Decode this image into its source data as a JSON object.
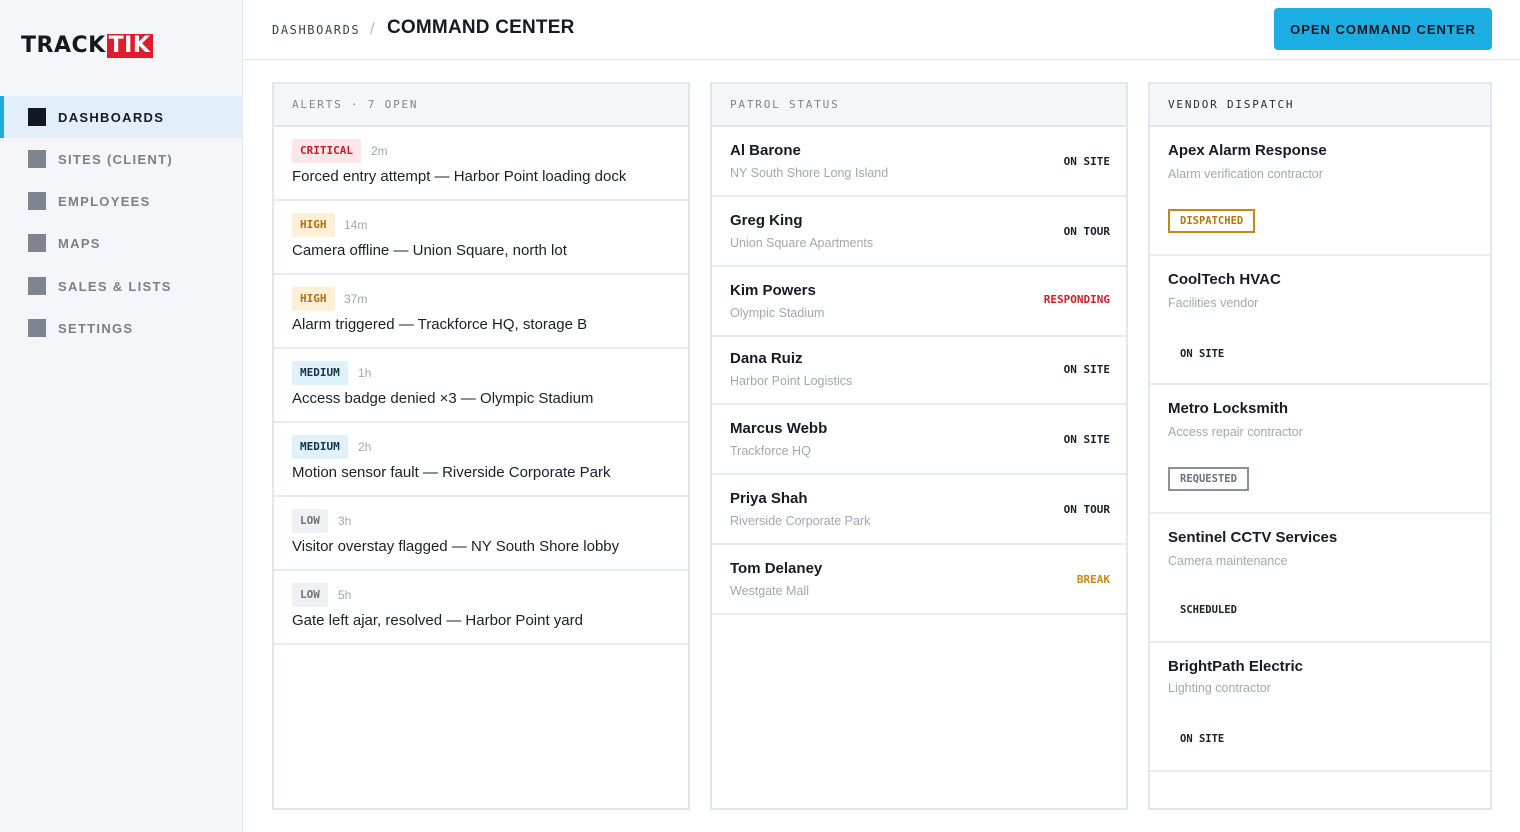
{
  "brand": {
    "logo_part1": "TRACK",
    "logo_part2": "TIK"
  },
  "sidebar": {
    "items": [
      {
        "label": "DASHBOARDS",
        "active": true
      },
      {
        "label": "SITES (CLIENT)",
        "active": false
      },
      {
        "label": "EMPLOYEES",
        "active": false
      },
      {
        "label": "MAPS",
        "active": false
      },
      {
        "label": "SALES & LISTS",
        "active": false
      },
      {
        "label": "SETTINGS",
        "active": false
      }
    ]
  },
  "header": {
    "breadcrumb": "DASHBOARDS",
    "breadcrumb_separator": "/",
    "title": "COMMAND CENTER",
    "action_label": "OPEN COMMAND CENTER"
  },
  "alerts": {
    "heading": "ALERTS · 7 OPEN",
    "items": [
      {
        "severity": "CRITICAL",
        "level": "critical",
        "age": "2m",
        "text": "Forced entry attempt — Harbor Point loading dock"
      },
      {
        "severity": "HIGH",
        "level": "high",
        "age": "14m",
        "text": "Camera offline — Union Square, north lot"
      },
      {
        "severity": "HIGH",
        "level": "high",
        "age": "37m",
        "text": "Alarm triggered — Trackforce HQ, storage B"
      },
      {
        "severity": "MEDIUM",
        "level": "medium",
        "age": "1h",
        "text": "Access badge denied ×3 — Olympic Stadium"
      },
      {
        "severity": "MEDIUM",
        "level": "medium",
        "age": "2h",
        "text": "Motion sensor fault — Riverside Corporate Park"
      },
      {
        "severity": "LOW",
        "level": "low",
        "age": "3h",
        "text": "Visitor overstay flagged — NY South Shore lobby"
      },
      {
        "severity": "LOW",
        "level": "low",
        "age": "5h",
        "text": "Gate left ajar, resolved — Harbor Point yard"
      }
    ]
  },
  "patrol": {
    "heading": "PATROL STATUS",
    "items": [
      {
        "name": "Al Barone",
        "site": "NY South Shore Long Island",
        "status": "ON SITE",
        "kind": "normal"
      },
      {
        "name": "Greg King",
        "site": "Union Square Apartments",
        "status": "ON TOUR",
        "kind": "normal"
      },
      {
        "name": "Kim Powers",
        "site": "Olympic Stadium",
        "status": "RESPONDING",
        "kind": "responding"
      },
      {
        "name": "Dana Ruiz",
        "site": "Harbor Point Logistics",
        "status": "ON SITE",
        "kind": "normal"
      },
      {
        "name": "Marcus Webb",
        "site": "Trackforce HQ",
        "status": "ON SITE",
        "kind": "normal"
      },
      {
        "name": "Priya Shah",
        "site": "Riverside Corporate Park",
        "status": "ON TOUR",
        "kind": "normal"
      },
      {
        "name": "Tom Delaney",
        "site": "Westgate Mall",
        "status": "BREAK",
        "kind": "break"
      }
    ]
  },
  "vendors": {
    "heading": "VENDOR DISPATCH",
    "items": [
      {
        "name": "Apex Alarm Response",
        "desc": "Alarm verification contractor",
        "status": "DISPATCHED",
        "kind": "dispatched"
      },
      {
        "name": "CoolTech HVAC",
        "desc": "Facilities vendor",
        "status": "ON SITE",
        "kind": "plain"
      },
      {
        "name": "Metro Locksmith",
        "desc": "Access repair contractor",
        "status": "REQUESTED",
        "kind": "requested"
      },
      {
        "name": "Sentinel CCTV Services",
        "desc": "Camera maintenance",
        "status": "SCHEDULED",
        "kind": "plain"
      },
      {
        "name": "BrightPath Electric",
        "desc": "Lighting contractor",
        "status": "ON SITE",
        "kind": "plain"
      }
    ]
  },
  "colors": {
    "accent": "#1caee3",
    "brand_red": "#e21b2c",
    "critical": "#c81a29",
    "warning": "#b07014"
  }
}
